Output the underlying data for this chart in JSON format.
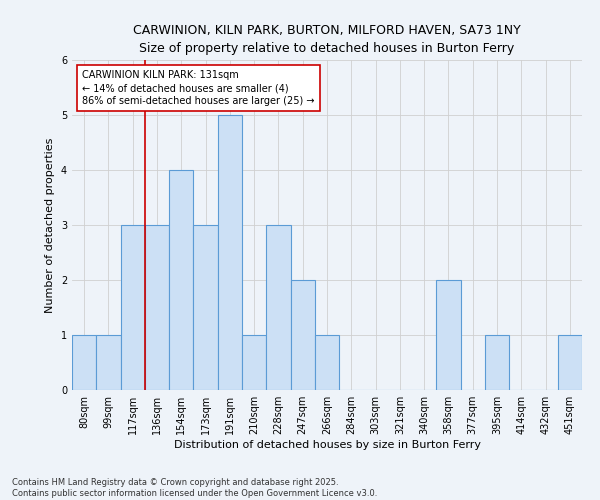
{
  "title_line1": "CARWINION, KILN PARK, BURTON, MILFORD HAVEN, SA73 1NY",
  "title_line2": "Size of property relative to detached houses in Burton Ferry",
  "xlabel": "Distribution of detached houses by size in Burton Ferry",
  "ylabel": "Number of detached properties",
  "categories": [
    "80sqm",
    "99sqm",
    "117sqm",
    "136sqm",
    "154sqm",
    "173sqm",
    "191sqm",
    "210sqm",
    "228sqm",
    "247sqm",
    "266sqm",
    "284sqm",
    "303sqm",
    "321sqm",
    "340sqm",
    "358sqm",
    "377sqm",
    "395sqm",
    "414sqm",
    "432sqm",
    "451sqm"
  ],
  "values": [
    1,
    1,
    3,
    3,
    4,
    3,
    5,
    1,
    3,
    2,
    1,
    0,
    0,
    0,
    0,
    2,
    0,
    1,
    0,
    0,
    1
  ],
  "bar_color": "#cce0f5",
  "bar_edge_color": "#5b9bd5",
  "grid_color": "#d0d0d0",
  "marker_label": "CARWINION KILN PARK: 131sqm\n← 14% of detached houses are smaller (4)\n86% of semi-detached houses are larger (25) →",
  "annotation_box_color": "#ffffff",
  "annotation_box_edge": "#cc0000",
  "vline_color": "#cc0000",
  "vline_x": 2.5,
  "ylim": [
    0,
    6
  ],
  "yticks": [
    0,
    1,
    2,
    3,
    4,
    5,
    6
  ],
  "footnote": "Contains HM Land Registry data © Crown copyright and database right 2025.\nContains public sector information licensed under the Open Government Licence v3.0.",
  "bg_color": "#eef3f9",
  "title_fontsize": 9,
  "subtitle_fontsize": 8.5,
  "xlabel_fontsize": 8,
  "ylabel_fontsize": 8,
  "tick_fontsize": 7,
  "annot_fontsize": 7,
  "footnote_fontsize": 6
}
